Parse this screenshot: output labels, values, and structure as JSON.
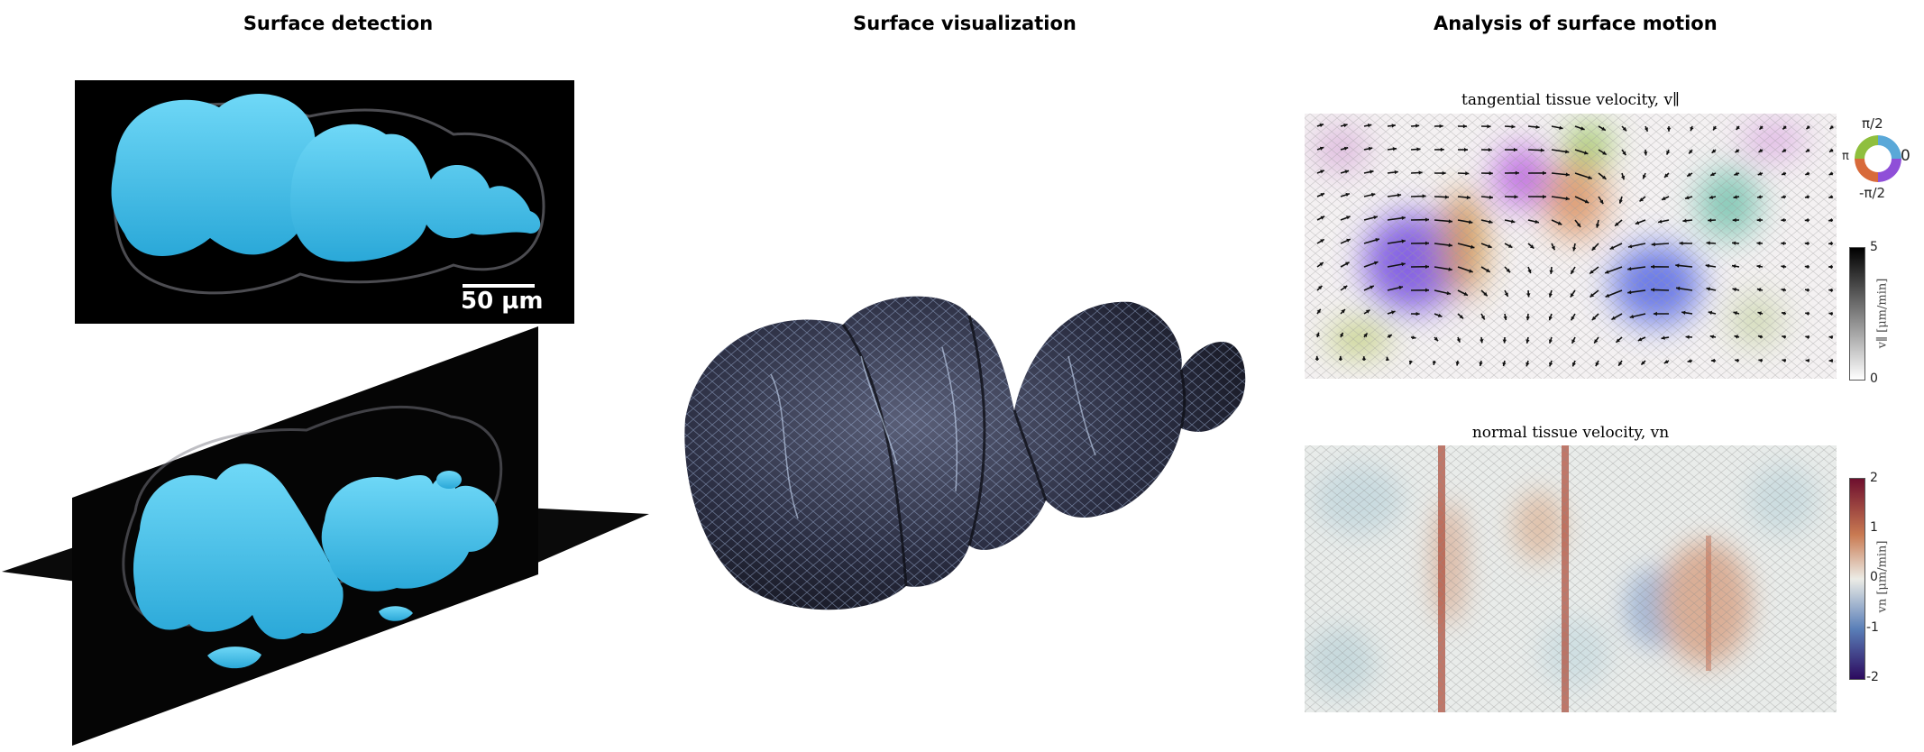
{
  "columns": {
    "detection_title": "Surface detection",
    "visualization_title": "Surface visualization",
    "analysis_title": "Analysis of surface motion"
  },
  "detection": {
    "scale_bar_label": "50 µm",
    "surface_color": "#45c3eb"
  },
  "analysis": {
    "tangential": {
      "title": "tangential tissue velocity, v∥",
      "colorwheel_ticks": {
        "top": "π/2",
        "left": "π",
        "right": "0",
        "bottom": "-π/2"
      },
      "colorbar_ticks": [
        "5",
        "0"
      ],
      "colorbar_label": "v∥ [μm/min]",
      "colorbar_range": [
        0,
        5
      ]
    },
    "normal": {
      "title": "normal tissue velocity, vn",
      "colorbar_ticks": [
        "2",
        "1",
        "0",
        "-1",
        "-2"
      ],
      "colorbar_label": "vn [μm/min]",
      "colorbar_range": [
        -2,
        2
      ],
      "colormap": [
        "#2c0a5e",
        "#5a7fb8",
        "#ecece6",
        "#c97a52",
        "#6e0f2e"
      ]
    }
  }
}
